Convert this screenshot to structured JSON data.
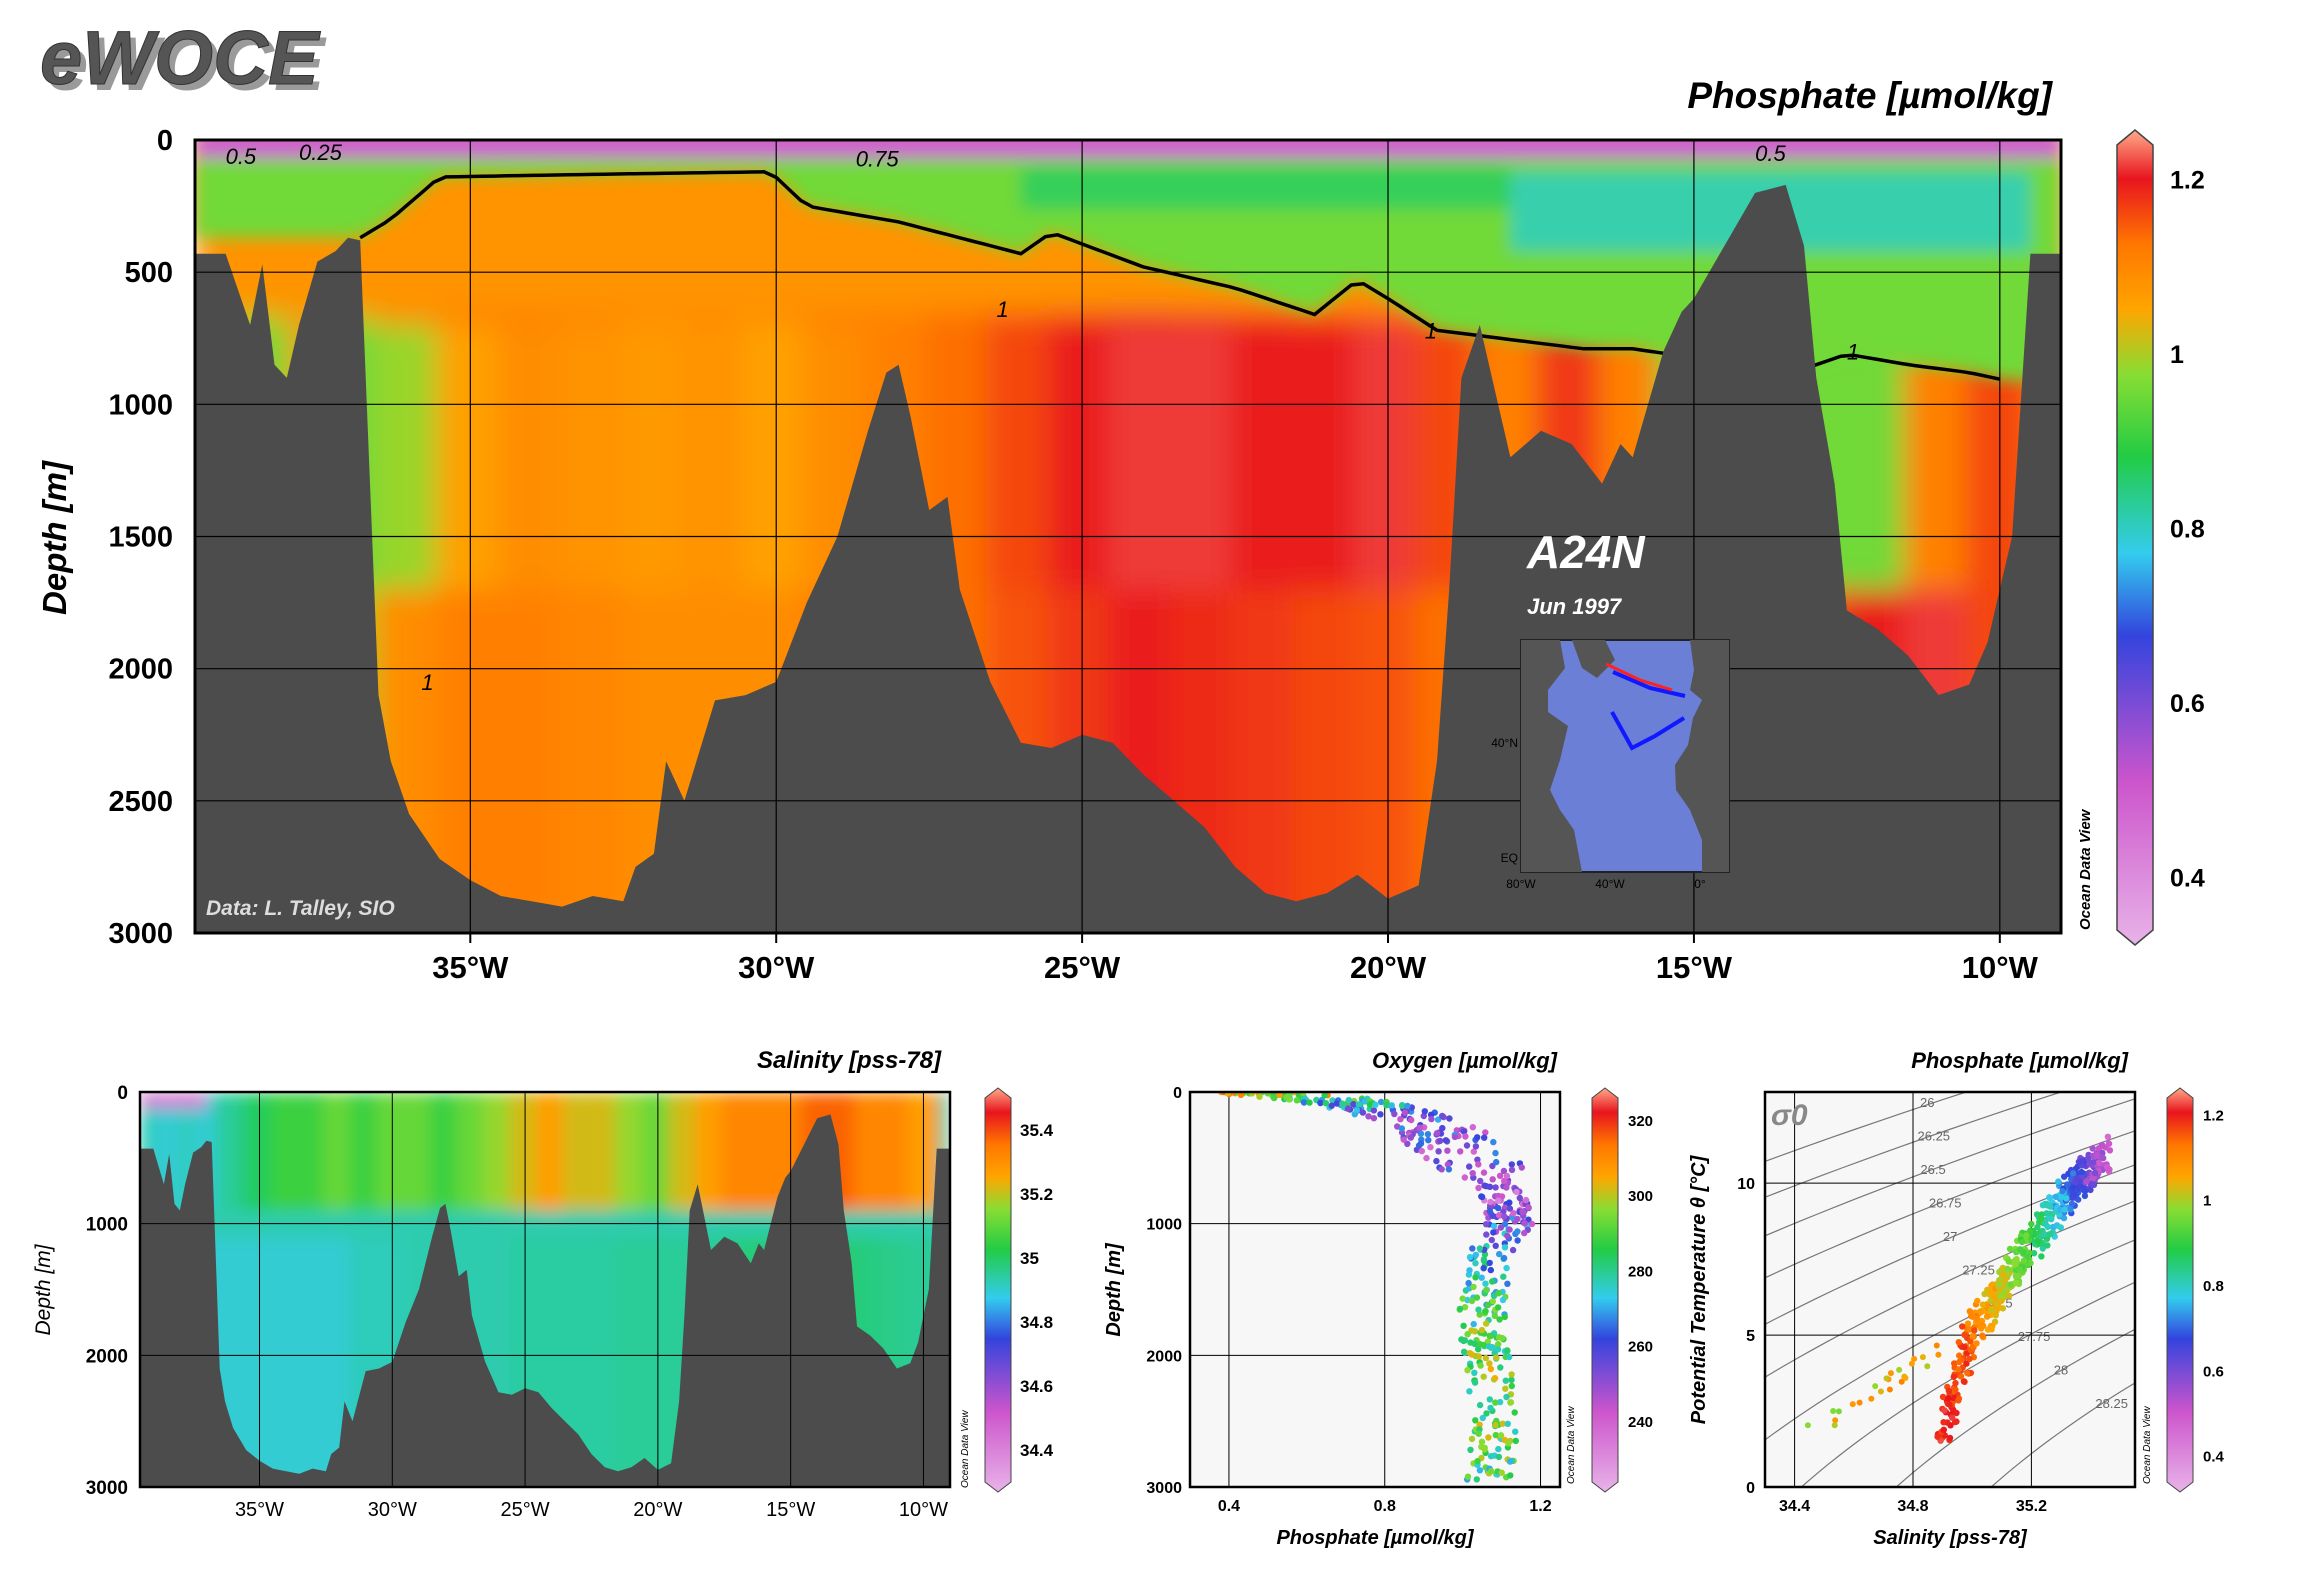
{
  "logo": "eWOCE",
  "credit": "Data: L. Talley, SIO",
  "odv_label": "Ocean Data View",
  "colors": {
    "bathymetry": "#4c4c4c",
    "frame": "#000000",
    "panel_bg": "#f7f7f7"
  },
  "colormap": [
    "#e8b3e8",
    "#cc55cc",
    "#3344dd",
    "#33ccee",
    "#22cc44",
    "#88dd33",
    "#ffa500",
    "#ff7700",
    "#e8141e",
    "#ffaa88"
  ],
  "chart_data": [
    {
      "type": "heatmap",
      "title": "Phosphate [µmol/kg]",
      "ylabel": "Depth [m]",
      "xlabel": "",
      "x_ticks": [
        "35°W",
        "30°W",
        "25°W",
        "20°W",
        "15°W",
        "10°W"
      ],
      "x_tick_values": [
        -35,
        -30,
        -25,
        -20,
        -15,
        -10
      ],
      "y_ticks": [
        "0",
        "500",
        "1000",
        "1500",
        "2000",
        "2500",
        "3000"
      ],
      "xlim": [
        -39.5,
        -9
      ],
      "ylim": [
        0,
        3000
      ],
      "colorbar": {
        "ticks": [
          "1.2",
          "1",
          "0.8",
          "0.6",
          "0.4"
        ],
        "range": [
          0.34,
          1.24
        ]
      },
      "contour_labels": [
        "0.5",
        "0.25",
        "0.75",
        "1",
        "1",
        "0.5",
        "1",
        "1"
      ],
      "annotation": {
        "section": "A24N",
        "date": "Jun 1997"
      },
      "inset_map": {
        "lat_labels": [
          "40°N",
          "EQ"
        ],
        "lon_labels": [
          "80°W",
          "40°W",
          "0°"
        ]
      },
      "bathymetry_lon": [
        -39.5,
        -39,
        -38.6,
        -38.4,
        -38.2,
        -38,
        -37.8,
        -37.5,
        -37.2,
        -37,
        -36.8,
        -36.5,
        -36.3,
        -36,
        -35.5,
        -35,
        -34.5,
        -34,
        -33.5,
        -33,
        -32.5,
        -32.3,
        -32,
        -31.8,
        -31.5,
        -31,
        -30.5,
        -30,
        -29.5,
        -29,
        -28.5,
        -28.2,
        -28,
        -27.8,
        -27.5,
        -27.2,
        -27,
        -26.5,
        -26,
        -25.5,
        -25,
        -24.5,
        -24,
        -23.5,
        -23,
        -22.5,
        -22,
        -21.5,
        -21,
        -20.5,
        -20,
        -19.5,
        -19.2,
        -19,
        -18.8,
        -18.5,
        -18.2,
        -18,
        -17.5,
        -17,
        -16.5,
        -16.2,
        -16,
        -15.5,
        -15.2,
        -15,
        -14.5,
        -14,
        -13.5,
        -13.2,
        -13,
        -12.7,
        -12.5,
        -12,
        -11.5,
        -11,
        -10.5,
        -10.2,
        -10,
        -9.8,
        -9.5,
        -9
      ],
      "bathymetry_depth": [
        430,
        430,
        700,
        470,
        850,
        900,
        700,
        460,
        420,
        370,
        380,
        2100,
        2350,
        2550,
        2720,
        2800,
        2860,
        2880,
        2900,
        2860,
        2880,
        2750,
        2700,
        2350,
        2500,
        2120,
        2100,
        2050,
        1750,
        1500,
        1100,
        880,
        850,
        1050,
        1400,
        1350,
        1700,
        2050,
        2280,
        2300,
        2250,
        2280,
        2400,
        2500,
        2600,
        2750,
        2850,
        2880,
        2850,
        2780,
        2870,
        2820,
        2350,
        1700,
        900,
        700,
        1000,
        1200,
        1100,
        1150,
        1300,
        1150,
        1200,
        800,
        650,
        600,
        400,
        200,
        170,
        400,
        900,
        1300,
        1780,
        1850,
        1950,
        2100,
        2060,
        1900,
        1700,
        1500,
        430,
        430
      ],
      "contour_1_lon": [
        -36.8,
        -36.3,
        -35.5,
        -33,
        -30.1,
        -29.5,
        -28,
        -26,
        -25.5,
        -24,
        -22.5,
        -21.2,
        -20.5,
        -20,
        -19.2,
        -16.8,
        -16,
        -15.4,
        -13.5,
        -12.5,
        -11.5,
        -10.5,
        -9.9
      ],
      "contour_1_depth": [
        370,
        300,
        140,
        130,
        120,
        250,
        310,
        430,
        350,
        480,
        560,
        660,
        530,
        600,
        720,
        790,
        790,
        810,
        890,
        810,
        850,
        880,
        910
      ],
      "section_stations_lon": [
        -38.5,
        -37,
        -36,
        -35,
        -34,
        -33,
        -32,
        -31,
        -30,
        -29,
        -28,
        -27,
        -26,
        -25,
        -24,
        -23,
        -22,
        -21,
        -20,
        -19,
        -18,
        -17,
        -16,
        -15,
        -14,
        -13,
        -12,
        -11,
        -10
      ],
      "section_phosphate_upper": [
        0.95,
        0.95,
        0.98,
        1.05,
        1.08,
        1.07,
        1.06,
        1.07,
        1.05,
        1.08,
        1.1,
        1.12,
        1.15,
        1.18,
        1.2,
        1.2,
        1.18,
        1.18,
        1.2,
        1.15,
        1.1,
        1.16,
        1.1,
        0.95,
        0.9,
        0.95,
        0.95,
        1.1,
        1.15
      ],
      "section_phosphate_deep": [
        1.0,
        1.0,
        1.08,
        1.1,
        1.1,
        1.09,
        1.08,
        1.08,
        1.08,
        1.1,
        1.1,
        1.12,
        1.14,
        1.16,
        1.18,
        1.17,
        1.16,
        1.15,
        1.14,
        1.12,
        1.1,
        1.15,
        1.15,
        1.12,
        1.15,
        1.15,
        1.18,
        1.2,
        1.15
      ]
    },
    {
      "type": "heatmap",
      "title": "Salinity [pss-78]",
      "ylabel": "Depth [m]",
      "xlabel": "",
      "x_ticks": [
        "35°W",
        "30°W",
        "25°W",
        "20°W",
        "15°W",
        "10°W"
      ],
      "x_tick_values": [
        -35,
        -30,
        -25,
        -20,
        -15,
        -10
      ],
      "y_ticks": [
        "0",
        "1000",
        "2000",
        "3000"
      ],
      "xlim": [
        -39.5,
        -9
      ],
      "ylim": [
        0,
        3000
      ],
      "colorbar": {
        "ticks": [
          "35.4",
          "35.2",
          "35",
          "34.8",
          "34.6",
          "34.4"
        ],
        "range": [
          34.3,
          35.5
        ]
      },
      "section_stations_lon": [
        -38.5,
        -37,
        -36,
        -35,
        -34,
        -33,
        -32,
        -31,
        -30,
        -29,
        -28,
        -27,
        -26,
        -25,
        -24,
        -23,
        -22,
        -21,
        -20,
        -19,
        -18,
        -17,
        -16,
        -15,
        -14,
        -13,
        -12,
        -11,
        -10
      ],
      "section_salinity_upper": [
        34.9,
        34.9,
        34.95,
        35.0,
        35.05,
        35.05,
        35.1,
        35.05,
        35.1,
        35.1,
        35.05,
        35.1,
        35.15,
        35.2,
        35.25,
        35.2,
        35.2,
        35.15,
        35.1,
        35.2,
        35.25,
        35.3,
        35.3,
        35.3,
        35.35,
        35.35,
        35.3,
        35.3,
        35.25
      ],
      "section_salinity_deep": [
        34.9,
        34.9,
        34.9,
        34.9,
        34.9,
        34.9,
        34.9,
        34.92,
        34.92,
        34.93,
        34.93,
        34.93,
        34.93,
        34.94,
        34.94,
        34.94,
        34.94,
        34.95,
        34.95,
        34.95,
        34.95,
        34.97,
        34.98,
        34.98,
        34.98,
        34.98,
        34.97,
        34.96,
        34.95
      ]
    },
    {
      "type": "scatter",
      "title": "Oxygen [µmol/kg]",
      "ylabel": "Depth [m]",
      "xlabel": "Phosphate [µmol/kg]",
      "x_ticks": [
        "0.4",
        "0.8",
        "1.2"
      ],
      "x_tick_values": [
        0.4,
        0.8,
        1.2
      ],
      "y_ticks": [
        "0",
        "1000",
        "2000",
        "3000"
      ],
      "xlim": [
        0.3,
        1.25
      ],
      "ylim": [
        0,
        3000
      ],
      "colorbar": {
        "ticks": [
          "320",
          "300",
          "280",
          "260",
          "240"
        ],
        "range": [
          224,
          326
        ]
      },
      "profile_depths": [
        0,
        25,
        50,
        100,
        150,
        200,
        300,
        400,
        500,
        600,
        700,
        800,
        900,
        1000,
        1100,
        1200,
        1300,
        1500,
        1600,
        1800,
        2000,
        2200,
        2400,
        2600,
        2800,
        2900
      ],
      "profile_phosphate": [
        0.45,
        0.55,
        0.65,
        0.75,
        0.82,
        0.88,
        0.95,
        0.98,
        1.02,
        1.05,
        1.08,
        1.1,
        1.12,
        1.12,
        1.1,
        1.08,
        1.07,
        1.06,
        1.05,
        1.05,
        1.06,
        1.07,
        1.08,
        1.08,
        1.08,
        1.07
      ],
      "profile_oxygen": [
        300,
        295,
        285,
        270,
        262,
        258,
        255,
        254,
        253,
        252,
        250,
        248,
        252,
        258,
        264,
        270,
        275,
        280,
        283,
        286,
        288,
        290,
        290,
        288,
        286,
        284
      ]
    },
    {
      "type": "scatter",
      "title": "Phosphate [µmol/kg]",
      "ylabel": "Potential Temperature θ [°C]",
      "xlabel": "Salinity [pss-78]",
      "x_ticks": [
        "34.4",
        "34.8",
        "35.2"
      ],
      "x_tick_values": [
        34.4,
        34.8,
        35.2
      ],
      "y_ticks": [
        "0",
        "5",
        "10"
      ],
      "xlim": [
        34.3,
        35.55
      ],
      "ylim": [
        0,
        13
      ],
      "density_label": "σ0",
      "isopycnal_labels": [
        "26",
        "26.25",
        "26.5",
        "26.75",
        "27",
        "27.25",
        "27.5",
        "27.75",
        "28",
        "28.25"
      ],
      "colorbar": {
        "ticks": [
          "1.2",
          "1",
          "0.8",
          "0.6",
          "0.4"
        ],
        "range": [
          0.34,
          1.24
        ]
      },
      "ts_salinity": [
        34.9,
        34.93,
        34.95,
        34.98,
        35.0,
        35.05,
        35.1,
        35.15,
        35.2,
        35.25,
        35.3,
        35.35,
        35.4,
        35.45
      ],
      "ts_theta": [
        2.0,
        2.8,
        3.5,
        4.5,
        5.0,
        5.8,
        6.6,
        7.3,
        8.0,
        8.7,
        9.3,
        10.0,
        10.5,
        11.0
      ],
      "ts_phosphate": [
        1.18,
        1.16,
        1.15,
        1.14,
        1.1,
        1.05,
        1.0,
        0.95,
        0.9,
        0.82,
        0.75,
        0.68,
        0.6,
        0.5
      ]
    }
  ]
}
